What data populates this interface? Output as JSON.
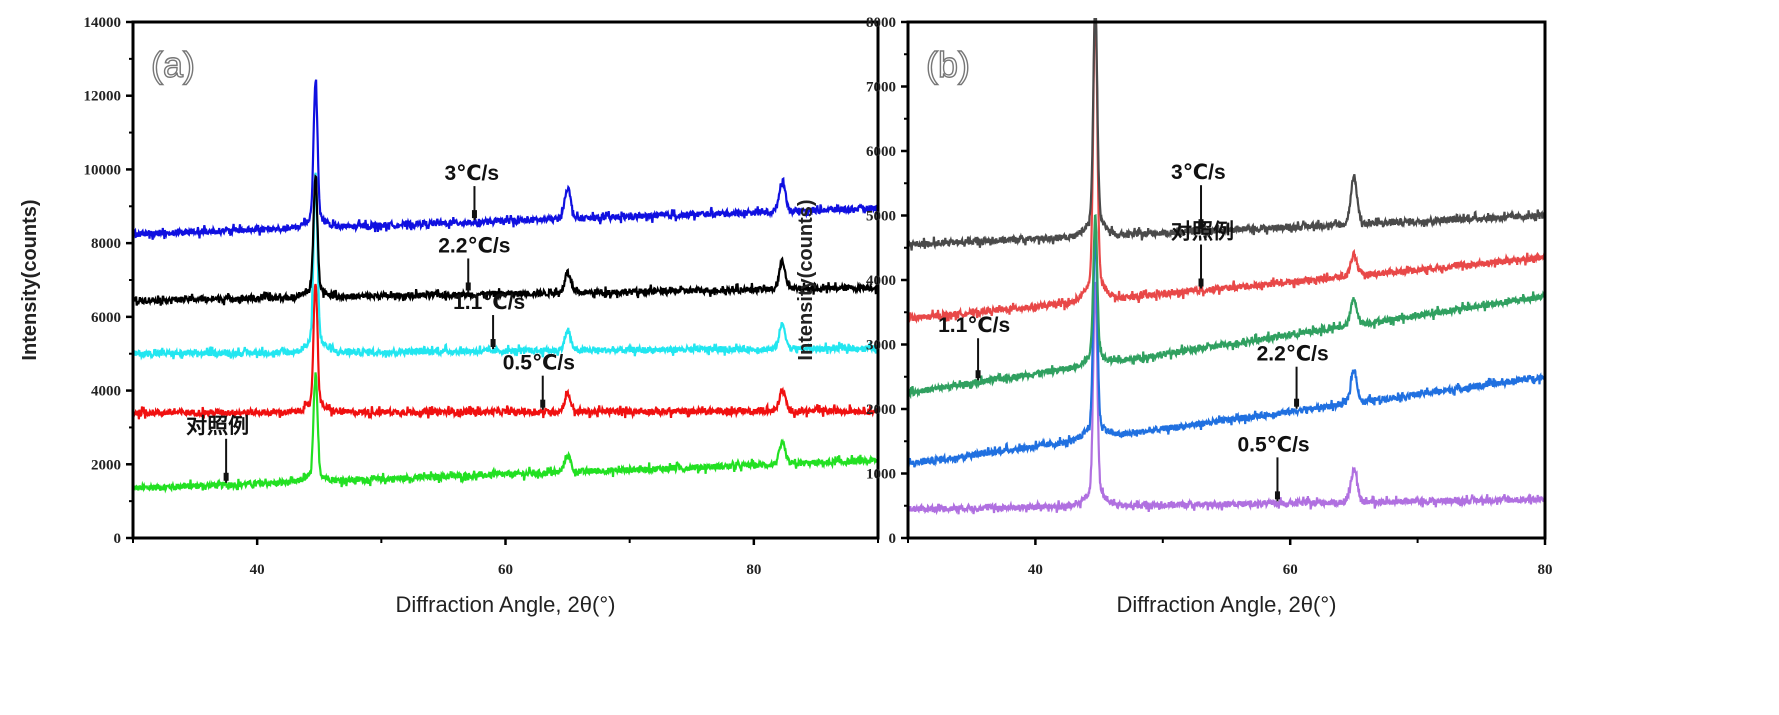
{
  "chart_data": [
    {
      "type": "line",
      "panel_label": "(a)",
      "title": "",
      "xlabel": "Diffraction Angle, 2θ(°)",
      "ylabel": "Intensity(counts)",
      "xlim": [
        30,
        90
      ],
      "ylim": [
        0,
        14000
      ],
      "xticks": [
        40,
        60,
        80
      ],
      "yticks": [
        0,
        2000,
        4000,
        6000,
        8000,
        10000,
        12000,
        14000
      ],
      "xtick_labels": [
        "40",
        "60",
        "80"
      ],
      "ytick_labels": [
        "0",
        "2000",
        "4000",
        "6000",
        "8000",
        "10000",
        "12000",
        "14000"
      ],
      "grid": false,
      "series": [
        {
          "name": "3℃/s",
          "color": "#1010e0",
          "baseline_start": 8250,
          "baseline_end": 8950,
          "peaks": [
            {
              "x": 44.7,
              "y": 12100
            },
            {
              "x": 65.0,
              "y": 9500
            },
            {
              "x": 82.3,
              "y": 9700
            }
          ],
          "annotation_x": 57.5
        },
        {
          "name": "2.2℃/s",
          "color": "#000000",
          "baseline_start": 6450,
          "baseline_end": 6800,
          "peaks": [
            {
              "x": 44.7,
              "y": 9600
            },
            {
              "x": 65.0,
              "y": 7200
            },
            {
              "x": 82.3,
              "y": 7500
            }
          ],
          "annotation_x": 57.0
        },
        {
          "name": "1.1℃/s",
          "color": "#22e6f0",
          "baseline_start": 5000,
          "baseline_end": 5150,
          "peaks": [
            {
              "x": 44.7,
              "y": 9500
            },
            {
              "x": 65.0,
              "y": 5600
            },
            {
              "x": 82.3,
              "y": 5800
            }
          ],
          "annotation_x": 59.0
        },
        {
          "name": "0.5℃/s",
          "color": "#f01010",
          "baseline_start": 3400,
          "baseline_end": 3450,
          "peaks": [
            {
              "x": 44.7,
              "y": 6700
            },
            {
              "x": 65.0,
              "y": 3900
            },
            {
              "x": 82.3,
              "y": 4000
            }
          ],
          "annotation_x": 63.0
        },
        {
          "name": "对照例",
          "color": "#22e022",
          "baseline_start": 1350,
          "baseline_end": 2100,
          "peaks": [
            {
              "x": 44.7,
              "y": 4200
            },
            {
              "x": 65.0,
              "y": 2250
            },
            {
              "x": 82.3,
              "y": 2550
            }
          ],
          "annotation_x": 37.5
        }
      ]
    },
    {
      "type": "line",
      "panel_label": "(b)",
      "title": "",
      "xlabel": "Diffraction Angle, 2θ(°)",
      "ylabel": "Intensity(counts)",
      "xlim": [
        30,
        80
      ],
      "ylim": [
        0,
        8000
      ],
      "xticks": [
        40,
        60,
        80
      ],
      "yticks": [
        0,
        1000,
        2000,
        3000,
        4000,
        5000,
        6000,
        7000,
        8000
      ],
      "xtick_labels": [
        "40",
        "60",
        "80"
      ],
      "ytick_labels": [
        "0",
        "1000",
        "2000",
        "3000",
        "4000",
        "5000",
        "6000",
        "7000",
        "8000"
      ],
      "grid": false,
      "series": [
        {
          "name": "3℃/s",
          "color": "#4a4a4a",
          "baseline_start": 4550,
          "baseline_end": 5000,
          "peaks": [
            {
              "x": 44.7,
              "y": 8000
            },
            {
              "x": 65.0,
              "y": 5600
            }
          ],
          "annotation_x": 53.0
        },
        {
          "name": "对照例",
          "color": "#e84848",
          "baseline_start": 3400,
          "baseline_end": 4350,
          "peaks": [
            {
              "x": 44.7,
              "y": 7900
            },
            {
              "x": 65.0,
              "y": 4400
            }
          ],
          "annotation_x": 53.0
        },
        {
          "name": "1.1℃/s",
          "color": "#30a060",
          "baseline_start": 2250,
          "baseline_end": 3750,
          "peaks": [
            {
              "x": 44.7,
              "y": 4800
            },
            {
              "x": 65.0,
              "y": 3700
            }
          ],
          "annotation_x": 35.5
        },
        {
          "name": "2.2℃/s",
          "color": "#2070e0",
          "baseline_start": 1150,
          "baseline_end": 2500,
          "peaks": [
            {
              "x": 44.7,
              "y": 4500
            },
            {
              "x": 65.0,
              "y": 2600
            }
          ],
          "annotation_x": 60.5
        },
        {
          "name": "0.5℃/s",
          "color": "#b070e0",
          "baseline_start": 450,
          "baseline_end": 600,
          "peaks": [
            {
              "x": 44.7,
              "y": 3700
            },
            {
              "x": 65.0,
              "y": 1050
            }
          ],
          "annotation_x": 59.0
        }
      ]
    }
  ]
}
